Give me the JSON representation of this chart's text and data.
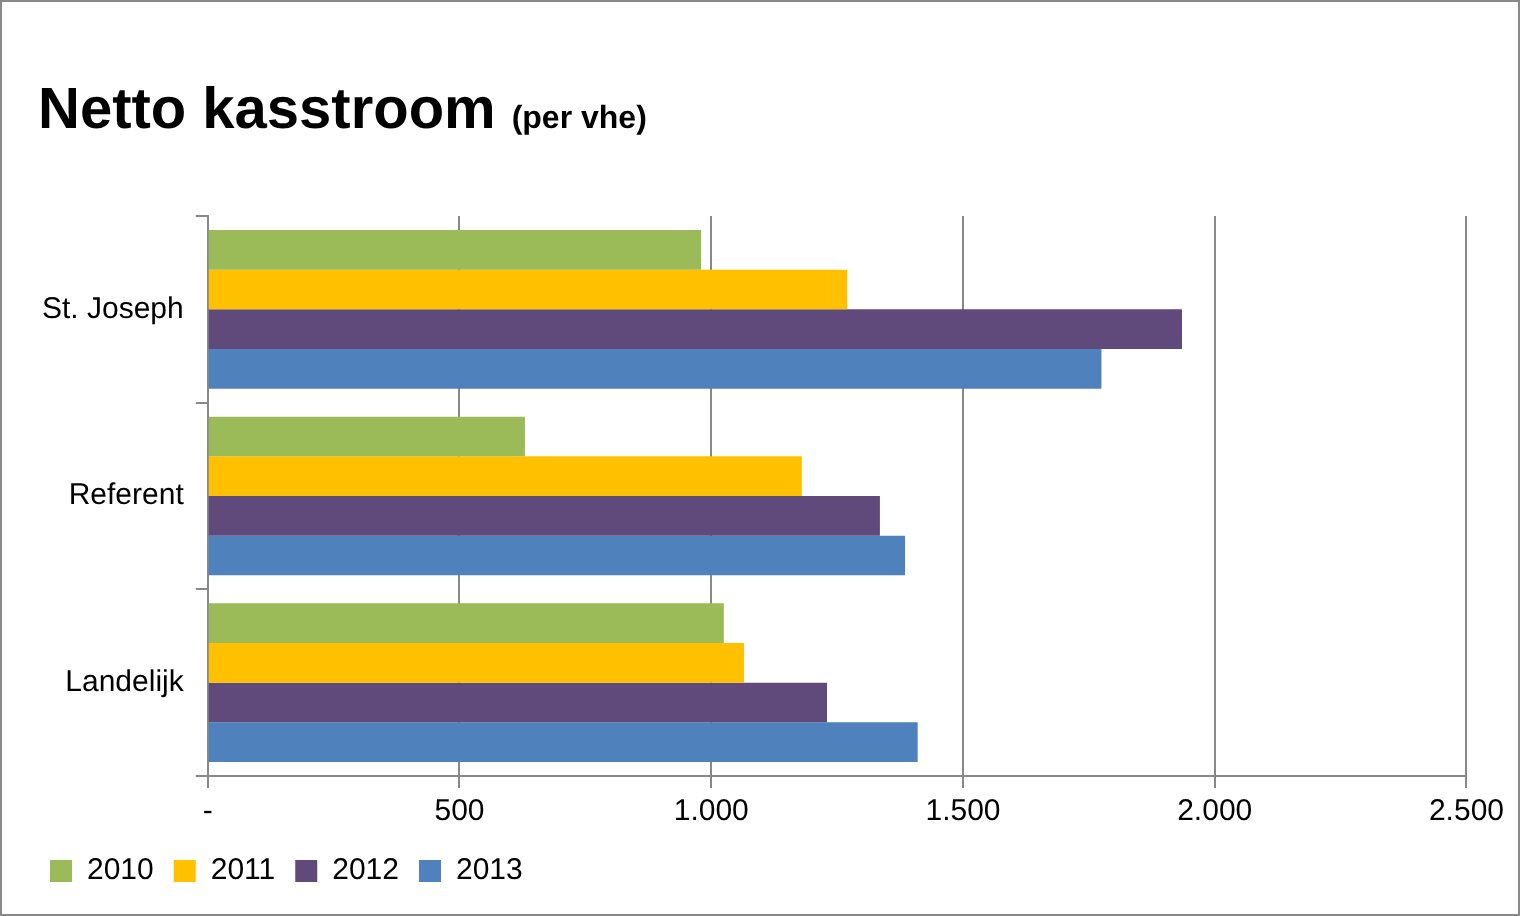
{
  "chart_data": {
    "type": "bar",
    "orientation": "horizontal",
    "title": "Netto kasstroom",
    "subtitle": "(per vhe)",
    "categories": [
      "St. Joseph",
      "Referent",
      "Landelijk"
    ],
    "series": [
      {
        "name": "2010",
        "color": "#9bbb59",
        "values": [
          980,
          630,
          1025
        ]
      },
      {
        "name": "2011",
        "color": "#ffc000",
        "values": [
          1270,
          1180,
          1065
        ]
      },
      {
        "name": "2012",
        "color": "#604a7b",
        "values": [
          1935,
          1335,
          1230
        ]
      },
      {
        "name": "2013",
        "color": "#4f81bd",
        "values": [
          1775,
          1385,
          1410
        ]
      }
    ],
    "xlim": [
      0,
      2500
    ],
    "xticks": [
      {
        "value": 0,
        "label": "-"
      },
      {
        "value": 500,
        "label": "500"
      },
      {
        "value": 1000,
        "label": "1.000"
      },
      {
        "value": 1500,
        "label": "1.500"
      },
      {
        "value": 2000,
        "label": "2.000"
      },
      {
        "value": 2500,
        "label": "2.500"
      }
    ],
    "grid": "x",
    "legend": "bottom left"
  }
}
